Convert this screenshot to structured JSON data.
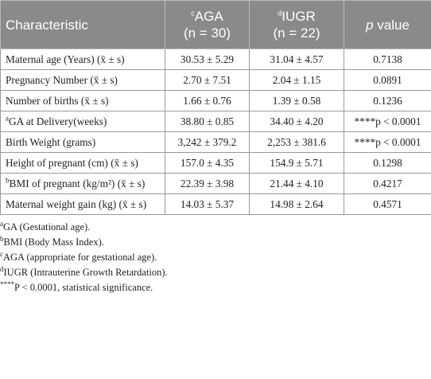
{
  "table": {
    "header": [
      {
        "text": "Characteristic"
      },
      {
        "sup": "c",
        "text": "AGA",
        "n": "(n = 30)"
      },
      {
        "sup": "d",
        "text": "IUGR",
        "n": "(n = 22)"
      },
      {
        "italic": "p",
        "text": "value"
      }
    ],
    "rows": [
      [
        {
          "text": "Maternal age (Years)",
          "note": "(x̄ ± s)"
        },
        "30.53 ± 5.29",
        "31.04 ± 4.57",
        "0.7138"
      ],
      [
        {
          "text": "Pregnancy Number",
          "note": "(x̄ ± s)"
        },
        "2.70 ± 7.51",
        "2.04 ± 1.15",
        "0.0891"
      ],
      [
        {
          "text": "Number of births",
          "note": "(x̄ ± s)"
        },
        "1.66 ± 0.76",
        "1.39 ± 0.58",
        "0.1236"
      ],
      [
        {
          "sup": "a",
          "text": "GA at Delivery(weeks)"
        },
        "38.80 ± 0.85",
        "34.40 ± 4.20",
        "****p < 0.0001"
      ],
      [
        {
          "text": "Birth Weight (grams)"
        },
        "3,242 ± 379.2",
        "2,253 ± 381.6",
        "****p < 0.0001"
      ],
      [
        {
          "text": "Height of pregnant (cm)",
          "note": "(x̄ ± s)"
        },
        "157.0 ± 4.35",
        "154.9 ± 5.71",
        "0.1298"
      ],
      [
        {
          "sup": "b",
          "text": "BMI of pregnant (kg/m²)",
          "note": "(x̄ ± s)"
        },
        "22.39 ± 3.98",
        "21.44 ± 4.10",
        "0.4217"
      ],
      [
        {
          "text": "Maternal weight gain (kg)",
          "note": "(x̄ ± s)"
        },
        "14.03 ± 5.37",
        "14.98 ± 2.64",
        "0.4571"
      ]
    ]
  },
  "footnotes": [
    {
      "sup": "a",
      "text": "GA (Gestational age)."
    },
    {
      "sup": "b",
      "text": "BMI (Body Mass Index)."
    },
    {
      "sup": "c",
      "text": "AGA (appropriate for gestational age)."
    },
    {
      "sup": "d",
      "text": "IUGR (Intrauterine Growth Retardation)."
    },
    {
      "sup": "****",
      "text": "P < 0.0001, statistical significance."
    }
  ]
}
